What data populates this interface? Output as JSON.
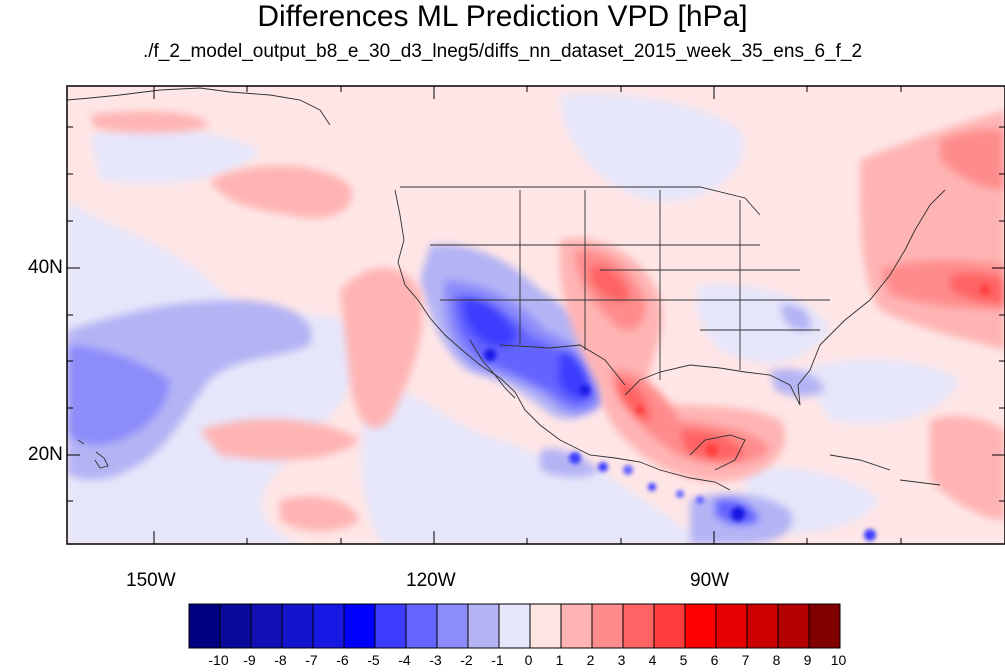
{
  "title": "Differences ML Prediction VPD [hPa]",
  "subtitle": "./f_2_model_output_b8_e_30_d3_lneg5/diffs_nn_dataset_2015_week_35_ens_6_f_2",
  "axes": {
    "y_labels": [
      "40N",
      "20N"
    ],
    "x_labels": [
      "150W",
      "120W",
      "90W"
    ]
  },
  "colorbar": {
    "labels": [
      "-10",
      "-9",
      "-8",
      "-7",
      "-6",
      "-5",
      "-4",
      "-3",
      "-2",
      "-1",
      "0",
      "1",
      "2",
      "3",
      "4",
      "5",
      "6",
      "7",
      "8",
      "9",
      "10"
    ],
    "colors": [
      "#000080",
      "#0a0a9a",
      "#1010b4",
      "#1414cc",
      "#1818e4",
      "#0000ff",
      "#3c3cff",
      "#6464ff",
      "#8c8cfa",
      "#b4b4f5",
      "#e6e6fa",
      "#ffe4e4",
      "#ffb4b4",
      "#ff8c8c",
      "#ff6464",
      "#ff3c3c",
      "#ff0000",
      "#e40000",
      "#cc0000",
      "#b40000",
      "#800000"
    ]
  },
  "colors": {
    "background_field": "#ffe6e6",
    "frame": "#000000"
  }
}
